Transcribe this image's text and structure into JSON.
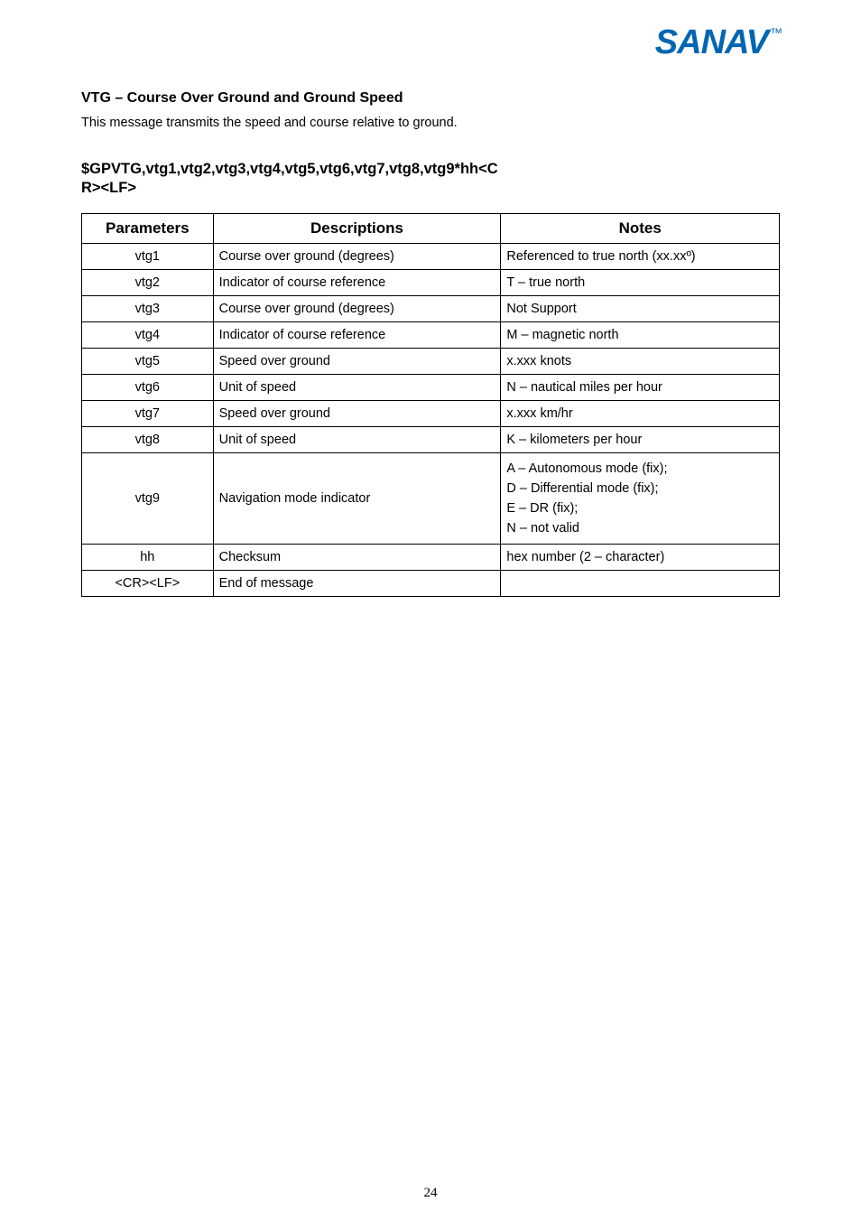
{
  "logo": {
    "text": "SANAV",
    "tm": "™",
    "color": "#0066b3"
  },
  "heading": "VTG – Course Over Ground and Ground Speed",
  "intro": "This message transmits the speed and course relative to ground.",
  "code1": "$GPVTG,vtg1,vtg2,vtg3,vtg4,vtg5,vtg6,vtg7,vtg8,vtg9*hh<C",
  "code2": "R><LF>",
  "table": {
    "headers": {
      "p": "Parameters",
      "d": "Descriptions",
      "n": "Notes"
    },
    "rows": [
      {
        "p": "vtg1",
        "d": "Course over ground (degrees)",
        "n": "Referenced to true north (xx.xxº)"
      },
      {
        "p": "vtg2",
        "d": "Indicator of course reference",
        "n": "T – true north"
      },
      {
        "p": "vtg3",
        "d": "Course over ground (degrees)",
        "n": "Not Support"
      },
      {
        "p": "vtg4",
        "d": "Indicator of course reference",
        "n": "M – magnetic north"
      },
      {
        "p": "vtg5",
        "d": "Speed over ground",
        "n": "x.xxx knots"
      },
      {
        "p": "vtg6",
        "d": "Unit of speed",
        "n": "N – nautical miles per hour"
      },
      {
        "p": "vtg7",
        "d": "Speed over ground",
        "n": "x.xxx km/hr"
      },
      {
        "p": "vtg8",
        "d": "Unit of speed",
        "n": "K – kilometers per hour"
      },
      {
        "p": "vtg9",
        "d": "Navigation mode indicator",
        "n_lines": [
          "A – Autonomous mode (fix);",
          "D – Differential mode (fix);",
          "E – DR (fix);",
          "N – not valid"
        ]
      },
      {
        "p": "hh",
        "d": "Checksum",
        "n": "hex number (2 – character)"
      },
      {
        "p": "<CR><LF>",
        "d": "End of message",
        "n": ""
      }
    ]
  },
  "page_number": "24"
}
